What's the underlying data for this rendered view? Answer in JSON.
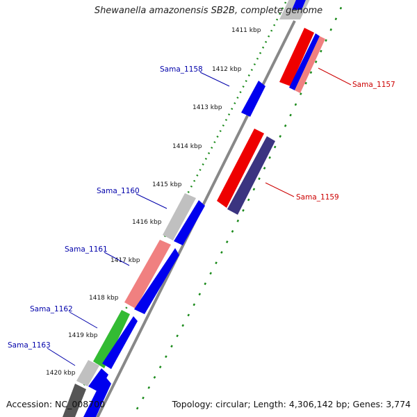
{
  "title": "Shewanella amazonensis SB2B, complete genome",
  "footer": {
    "accession": "Accession: NC_008700",
    "summary": "Topology: circular; Length: 4,306,142 bp; Genes: 3,774"
  },
  "colors": {
    "backbone": "#888888",
    "ticks": "#1a8a1a",
    "tick_label": "#111111",
    "plus_label": "#cc0000",
    "minus_label": "#0000aa",
    "cds_blue": "#0000ee",
    "cds_red": "#ee0000",
    "cds_salmon": "#f08080",
    "cds_navy": "#3b3480",
    "cds_grey": "#c0c0c0",
    "cds_green": "#33bb33",
    "cds_dark": "#555555"
  },
  "ruler": {
    "unit": "kbp",
    "ticks": [
      {
        "label": "1411 kbp"
      },
      {
        "label": "1412 kbp"
      },
      {
        "label": "1413 kbp"
      },
      {
        "label": "1414 kbp"
      },
      {
        "label": "1415 kbp"
      },
      {
        "label": "1416 kbp"
      },
      {
        "label": "1417 kbp"
      },
      {
        "label": "1418 kbp"
      },
      {
        "label": "1419 kbp"
      },
      {
        "label": "1420 kbp"
      }
    ]
  },
  "gene_labels": [
    {
      "label": "Sama_1157",
      "strand": "plus"
    },
    {
      "label": "Sama_1158",
      "strand": "minus"
    },
    {
      "label": "Sama_1159",
      "strand": "plus"
    },
    {
      "label": "Sama_1160",
      "strand": "minus"
    },
    {
      "label": "Sama_1161",
      "strand": "minus"
    },
    {
      "label": "Sama_1162",
      "strand": "minus"
    },
    {
      "label": "Sama_1163",
      "strand": "minus"
    }
  ]
}
